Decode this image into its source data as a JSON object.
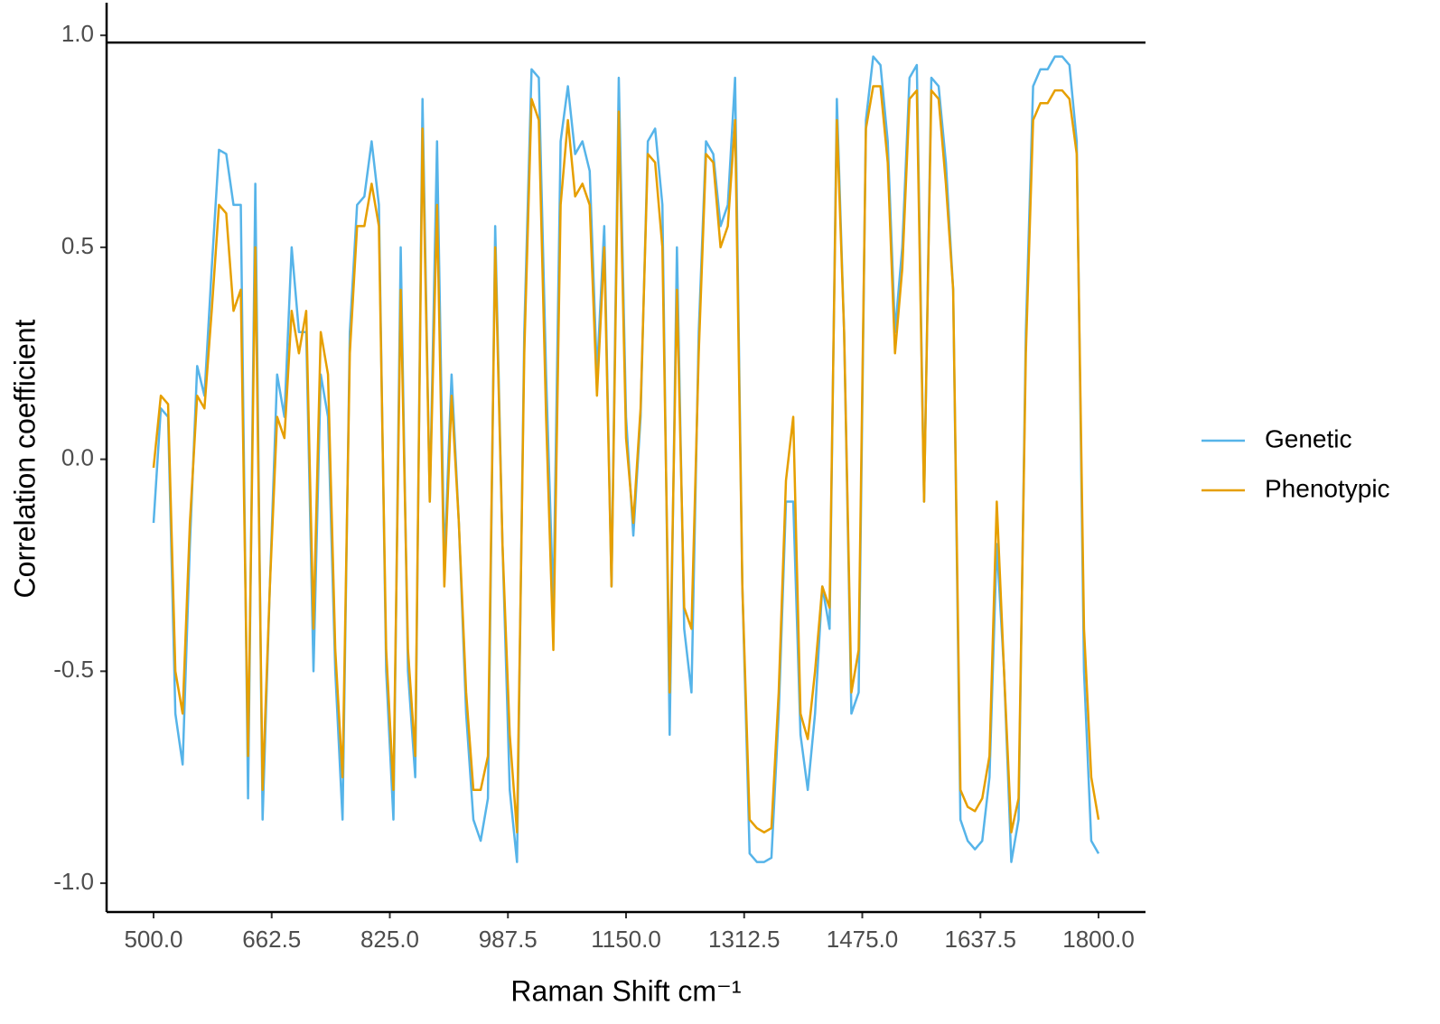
{
  "chart_data": {
    "type": "line",
    "x_label": "Raman Shift cm⁻¹",
    "y_label": "Correlation coefficient",
    "x": [
      500,
      510,
      520,
      530,
      540,
      550,
      560,
      570,
      580,
      590,
      600,
      610,
      620,
      630,
      640,
      650,
      660,
      670,
      680,
      690,
      700,
      710,
      720,
      730,
      740,
      750,
      760,
      770,
      780,
      790,
      800,
      810,
      820,
      830,
      840,
      850,
      860,
      870,
      880,
      890,
      900,
      910,
      920,
      930,
      940,
      950,
      960,
      970,
      980,
      990,
      1000,
      1010,
      1020,
      1030,
      1040,
      1050,
      1060,
      1070,
      1080,
      1090,
      1100,
      1110,
      1120,
      1130,
      1140,
      1150,
      1160,
      1170,
      1180,
      1190,
      1200,
      1210,
      1220,
      1230,
      1240,
      1250,
      1260,
      1270,
      1280,
      1290,
      1300,
      1310,
      1320,
      1330,
      1340,
      1350,
      1360,
      1370,
      1380,
      1390,
      1400,
      1410,
      1420,
      1430,
      1440,
      1450,
      1460,
      1470,
      1480,
      1490,
      1500,
      1510,
      1520,
      1530,
      1540,
      1550,
      1560,
      1570,
      1580,
      1590,
      1600,
      1610,
      1620,
      1630,
      1640,
      1650,
      1660,
      1670,
      1680,
      1690,
      1700,
      1710,
      1720,
      1730,
      1740,
      1750,
      1760,
      1770,
      1780,
      1790,
      1800
    ],
    "series": [
      {
        "name": "Genetic",
        "color": "#56B4E9",
        "values": [
          -0.15,
          0.12,
          0.1,
          -0.6,
          -0.72,
          -0.2,
          0.22,
          0.15,
          0.45,
          0.73,
          0.72,
          0.6,
          0.6,
          -0.8,
          0.65,
          -0.85,
          -0.3,
          0.2,
          0.1,
          0.5,
          0.3,
          0.3,
          -0.5,
          0.2,
          0.1,
          -0.5,
          -0.85,
          0.3,
          0.6,
          0.62,
          0.75,
          0.6,
          -0.5,
          -0.85,
          0.5,
          -0.5,
          -0.75,
          0.85,
          -0.1,
          0.75,
          -0.25,
          0.2,
          -0.15,
          -0.6,
          -0.85,
          -0.9,
          -0.8,
          0.55,
          -0.2,
          -0.78,
          -0.95,
          0.3,
          0.92,
          0.9,
          0.2,
          -0.35,
          0.75,
          0.88,
          0.72,
          0.75,
          0.68,
          0.2,
          0.55,
          -0.3,
          0.9,
          0.1,
          -0.18,
          0.1,
          0.75,
          0.78,
          0.6,
          -0.65,
          0.5,
          -0.4,
          -0.55,
          0.3,
          0.75,
          0.72,
          0.55,
          0.6,
          0.9,
          -0.3,
          -0.93,
          -0.95,
          -0.95,
          -0.94,
          -0.6,
          -0.1,
          -0.1,
          -0.65,
          -0.78,
          -0.6,
          -0.3,
          -0.4,
          0.85,
          0.3,
          -0.6,
          -0.55,
          0.8,
          0.95,
          0.93,
          0.75,
          0.3,
          0.5,
          0.9,
          0.93,
          -0.1,
          0.9,
          0.88,
          0.7,
          0.4,
          -0.85,
          -0.9,
          -0.92,
          -0.9,
          -0.75,
          -0.2,
          -0.5,
          -0.95,
          -0.85,
          0.3,
          0.88,
          0.92,
          0.92,
          0.95,
          0.95,
          0.93,
          0.75,
          -0.5,
          -0.9,
          -0.93
        ]
      },
      {
        "name": "Phenotypic",
        "color": "#E69F00",
        "values": [
          -0.02,
          0.15,
          0.13,
          -0.5,
          -0.6,
          -0.15,
          0.15,
          0.12,
          0.35,
          0.6,
          0.58,
          0.35,
          0.4,
          -0.7,
          0.5,
          -0.78,
          -0.3,
          0.1,
          0.05,
          0.35,
          0.25,
          0.35,
          -0.4,
          0.3,
          0.2,
          -0.45,
          -0.75,
          0.25,
          0.55,
          0.55,
          0.65,
          0.55,
          -0.45,
          -0.78,
          0.4,
          -0.45,
          -0.7,
          0.78,
          -0.1,
          0.6,
          -0.3,
          0.15,
          -0.15,
          -0.55,
          -0.78,
          -0.78,
          -0.7,
          0.5,
          -0.2,
          -0.65,
          -0.88,
          0.25,
          0.85,
          0.8,
          0.1,
          -0.45,
          0.6,
          0.8,
          0.62,
          0.65,
          0.6,
          0.15,
          0.5,
          -0.3,
          0.82,
          0.05,
          -0.15,
          0.12,
          0.72,
          0.7,
          0.5,
          -0.55,
          0.4,
          -0.35,
          -0.4,
          0.25,
          0.72,
          0.7,
          0.5,
          0.55,
          0.8,
          -0.3,
          -0.85,
          -0.87,
          -0.88,
          -0.87,
          -0.55,
          -0.05,
          0.1,
          -0.6,
          -0.66,
          -0.5,
          -0.3,
          -0.35,
          0.8,
          0.3,
          -0.55,
          -0.45,
          0.78,
          0.88,
          0.88,
          0.7,
          0.25,
          0.45,
          0.85,
          0.87,
          -0.1,
          0.87,
          0.85,
          0.65,
          0.4,
          -0.78,
          -0.82,
          -0.83,
          -0.8,
          -0.7,
          -0.1,
          -0.5,
          -0.88,
          -0.8,
          0.25,
          0.8,
          0.84,
          0.84,
          0.87,
          0.87,
          0.85,
          0.72,
          -0.4,
          -0.75,
          -0.85
        ]
      }
    ],
    "hline": 0.983,
    "xlim": [
      435.4,
      1864.6
    ],
    "ylim": [
      -1.068,
      1.077
    ],
    "xticks": [
      {
        "value": 500,
        "label": "500.0"
      },
      {
        "value": 662.5,
        "label": "662.5"
      },
      {
        "value": 825,
        "label": "825.0"
      },
      {
        "value": 987.5,
        "label": "987.5"
      },
      {
        "value": 1150,
        "label": "1150.0"
      },
      {
        "value": 1312.5,
        "label": "1312.5"
      },
      {
        "value": 1475,
        "label": "1475.0"
      },
      {
        "value": 1637.5,
        "label": "1637.5"
      },
      {
        "value": 1800,
        "label": "1800.0"
      }
    ],
    "yticks": [
      {
        "value": -1,
        "label": "-1.0"
      },
      {
        "value": -0.5,
        "label": "-0.5"
      },
      {
        "value": 0,
        "label": "0.0"
      },
      {
        "value": 0.5,
        "label": "0.5"
      },
      {
        "value": 1,
        "label": "1.0"
      }
    ],
    "legend": "right"
  }
}
